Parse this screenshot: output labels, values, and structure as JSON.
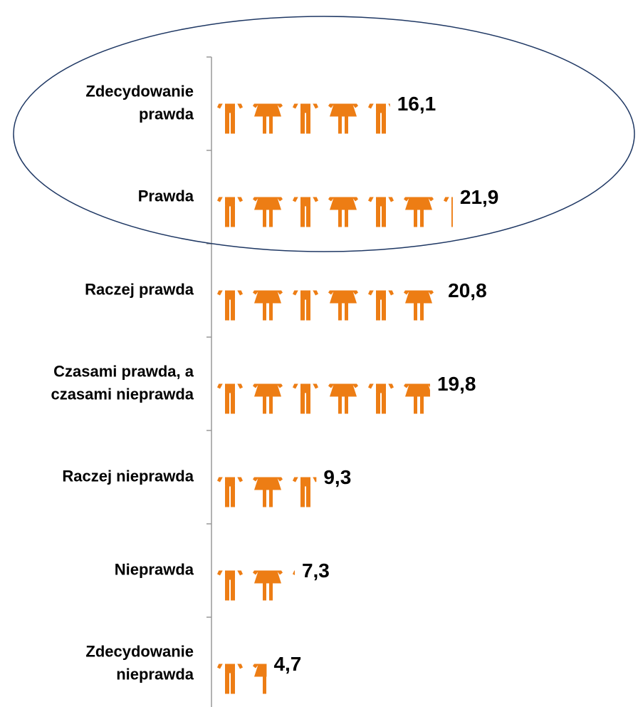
{
  "chart_data": {
    "type": "pictograph",
    "categories": [
      [
        "Zdecydowanie",
        "prawda"
      ],
      [
        "Prawda"
      ],
      [
        "Raczej prawda"
      ],
      [
        "Czasami prawda, a",
        "czasami nieprawda"
      ],
      [
        "Raczej nieprawda"
      ],
      [
        "Nieprawda"
      ],
      [
        "Zdecydowanie",
        "nieprawda"
      ]
    ],
    "values": [
      16.1,
      21.9,
      20.8,
      19.8,
      9.3,
      7.3,
      4.7
    ],
    "value_labels": [
      "16,1",
      "21,9",
      "20,8",
      "19,8",
      "9,3",
      "7,3",
      "4,7"
    ],
    "color": "#ed7d14"
  }
}
